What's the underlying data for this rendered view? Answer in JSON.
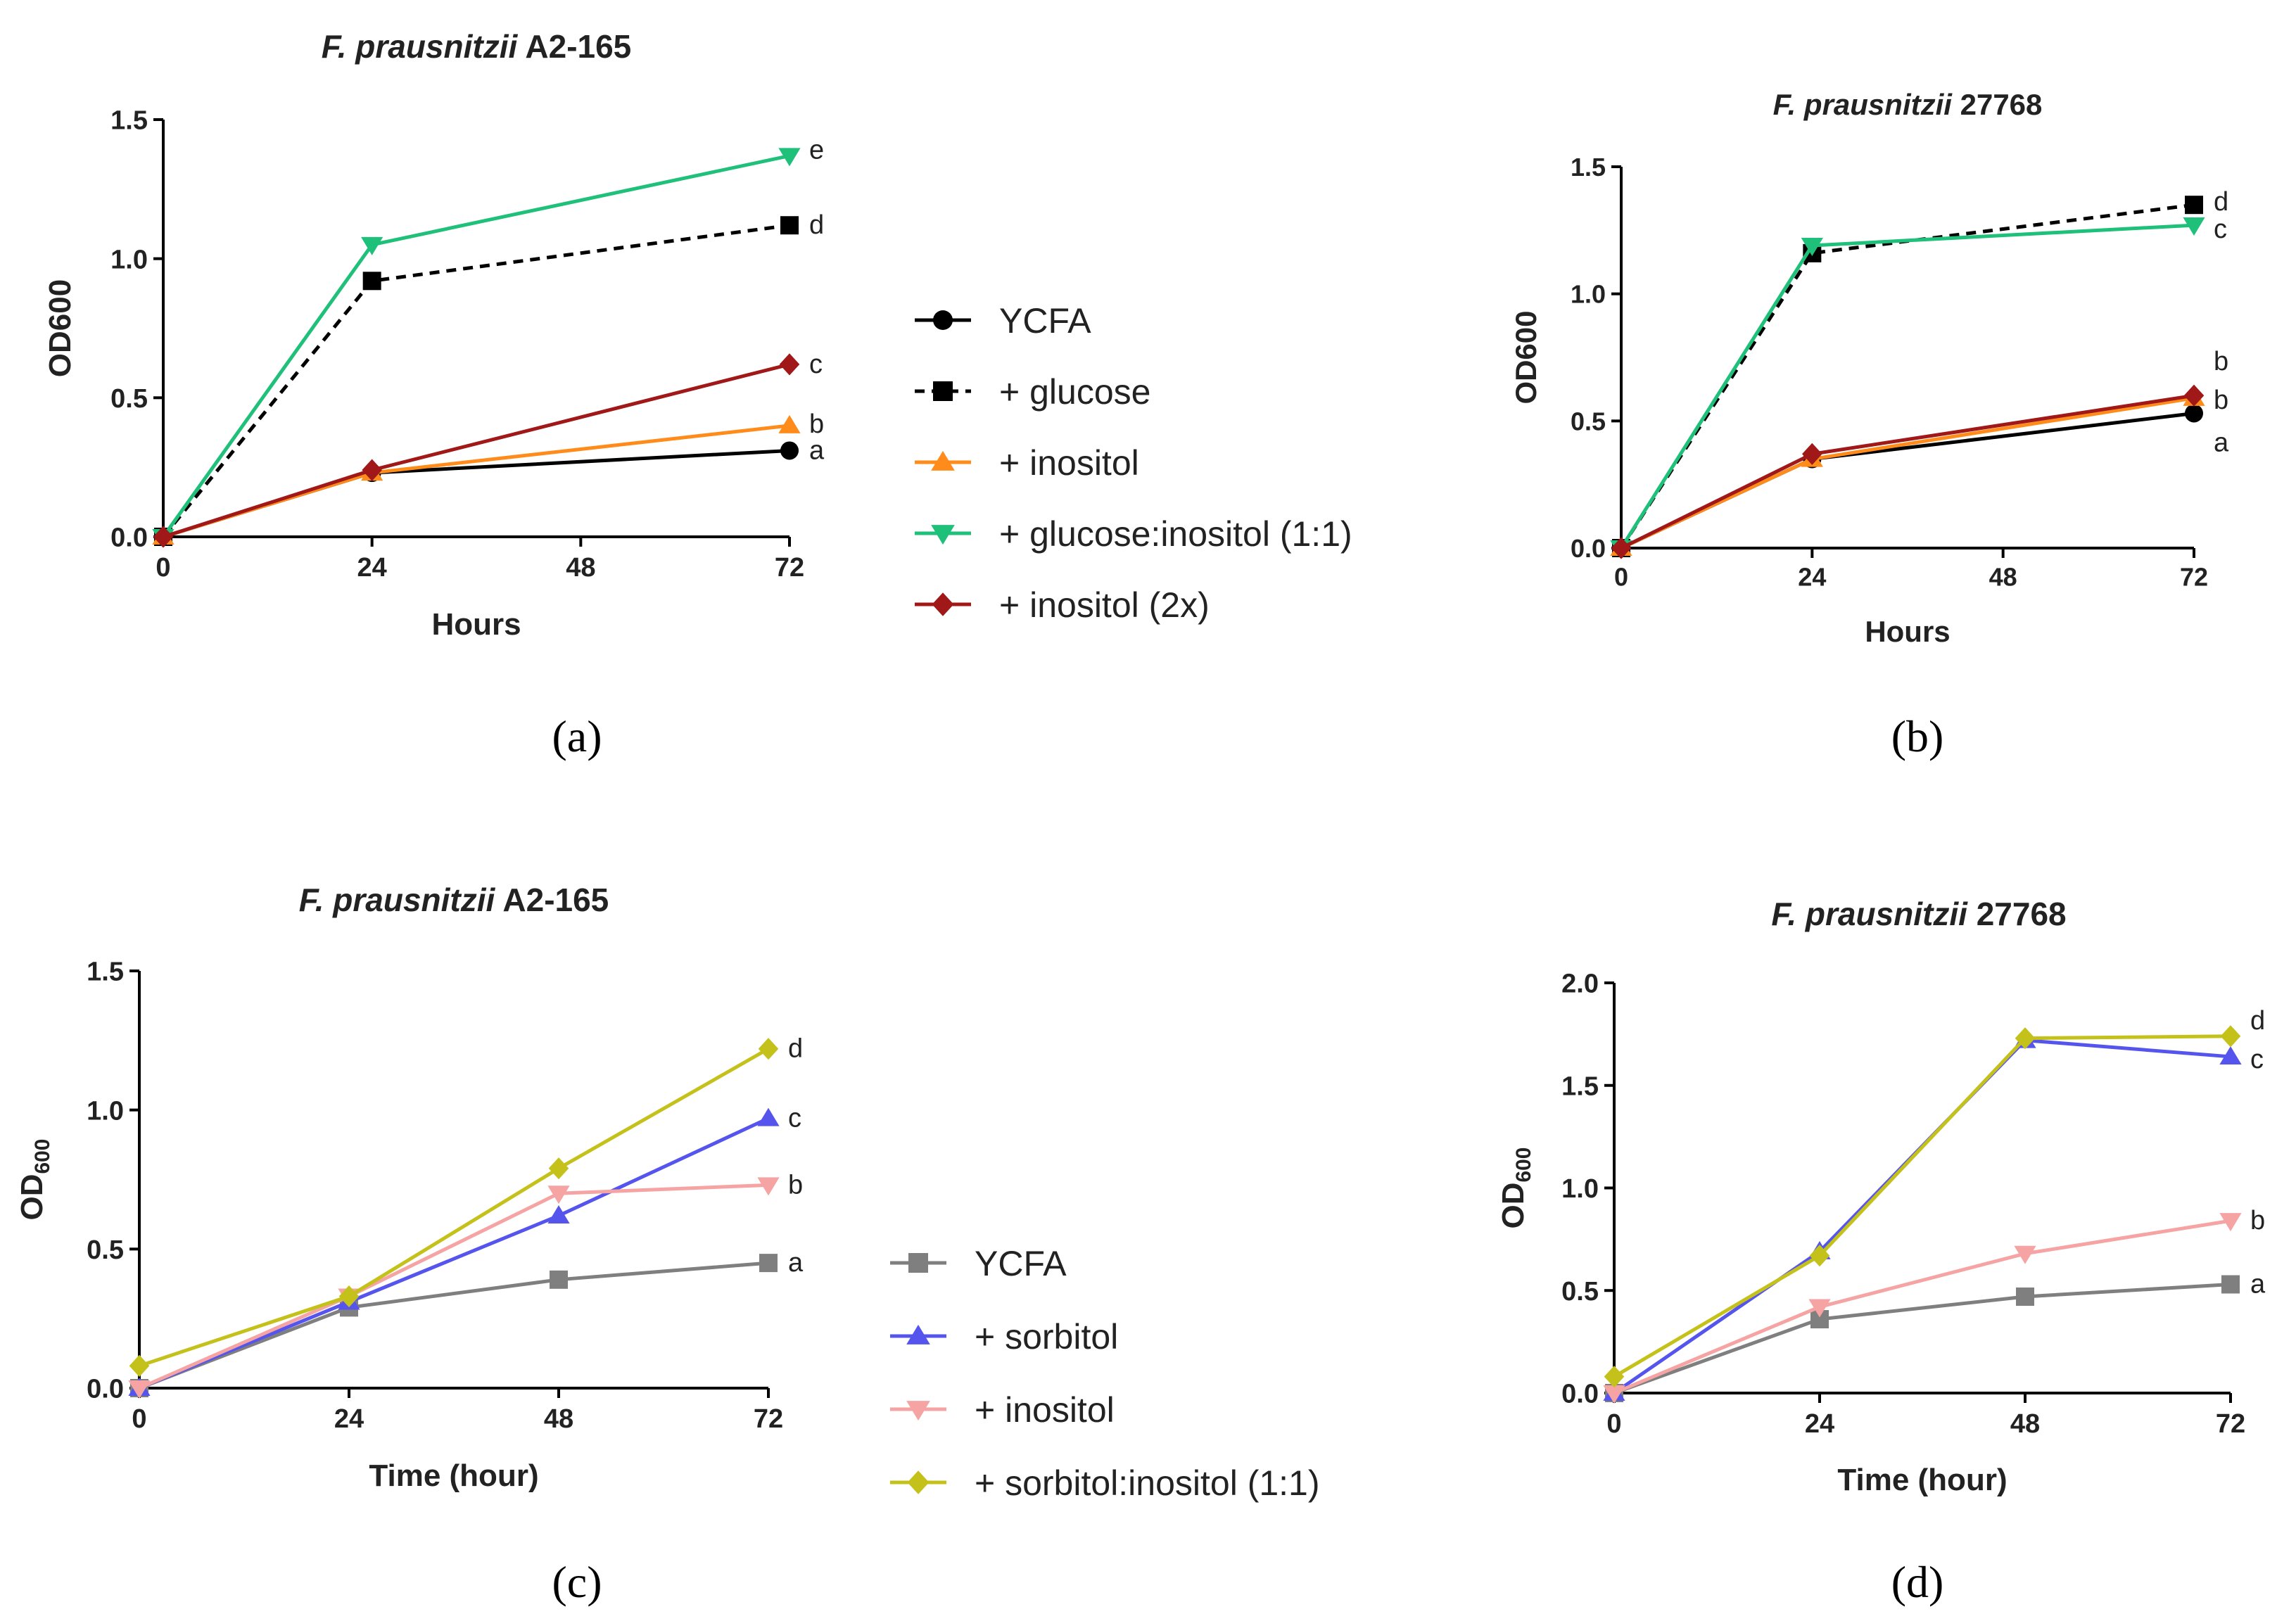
{
  "chart_data": [
    {
      "type": "line",
      "panel_label": "(a)",
      "panel_letter": "a",
      "title_italic": "F. prausnitzii",
      "title_strain": "A2-165",
      "xlabel": "Hours",
      "ylabel": "OD600",
      "ylabel_sub": "",
      "x": [
        0,
        24,
        72
      ],
      "xlim": [
        0,
        72
      ],
      "ylim": [
        0,
        1.5
      ],
      "xticks": [
        "0",
        "24",
        "48",
        "72"
      ],
      "xtick_values": [
        0,
        24,
        48,
        72
      ],
      "yticks": [
        "0.0",
        "0.5",
        "1.0",
        "1.5"
      ],
      "ytick_values": [
        0,
        0.5,
        1.0,
        1.5
      ],
      "legend_placement": "right",
      "series": [
        {
          "name": "YCFA",
          "values": [
            0.0,
            0.23,
            0.31
          ],
          "letter": "a",
          "color": "#000000",
          "marker": "circle",
          "dash": false
        },
        {
          "name": "+ glucose",
          "values": [
            0.0,
            0.92,
            1.12
          ],
          "letter": "d",
          "color": "#000000",
          "marker": "square",
          "dash": true
        },
        {
          "name": "+ inositol",
          "values": [
            0.0,
            0.23,
            0.4
          ],
          "letter": "b",
          "color": "#ff8c1a",
          "marker": "triangle-up",
          "dash": false
        },
        {
          "name": "+ glucose:inositol (1:1)",
          "values": [
            0.0,
            1.05,
            1.37
          ],
          "letter": "e",
          "color": "#1ec07a",
          "marker": "triangle-down",
          "dash": false
        },
        {
          "name": "+ inositol (2x)",
          "values": [
            0.0,
            0.24,
            0.62
          ],
          "letter": "c",
          "color": "#a01818",
          "marker": "diamond",
          "dash": false
        }
      ]
    },
    {
      "type": "line",
      "panel_label": "(b)",
      "panel_letter": "b",
      "title_italic": "F. prausnitzii",
      "title_strain": "27768",
      "xlabel": "Hours",
      "ylabel": "OD600",
      "ylabel_sub": "",
      "x": [
        0,
        24,
        72
      ],
      "xlim": [
        0,
        72
      ],
      "ylim": [
        0,
        1.5
      ],
      "xticks": [
        "0",
        "24",
        "48",
        "72"
      ],
      "xtick_values": [
        0,
        24,
        48,
        72
      ],
      "yticks": [
        "0.0",
        "0.5",
        "1.0",
        "1.5"
      ],
      "ytick_values": [
        0,
        0.5,
        1.0,
        1.5
      ],
      "legend_placement": "none",
      "series": [
        {
          "name": "YCFA",
          "values": [
            0.0,
            0.35,
            0.53
          ],
          "letter": "a",
          "color": "#000000",
          "marker": "circle",
          "dash": false
        },
        {
          "name": "+ glucose",
          "values": [
            0.0,
            1.16,
            1.35
          ],
          "letter": "d",
          "color": "#000000",
          "marker": "square",
          "dash": true
        },
        {
          "name": "+ inositol",
          "values": [
            0.0,
            0.35,
            0.59
          ],
          "letter": "b",
          "color": "#ff8c1a",
          "marker": "triangle-up",
          "dash": false
        },
        {
          "name": "+ glucose:inositol (1:1)",
          "values": [
            0.0,
            1.19,
            1.27
          ],
          "letter": "c",
          "color": "#1ec07a",
          "marker": "triangle-down",
          "dash": false
        },
        {
          "name": "+ inositol (2x)",
          "values": [
            0.0,
            0.37,
            0.6
          ],
          "letter": "b",
          "color": "#a01818",
          "marker": "diamond",
          "dash": false
        }
      ]
    },
    {
      "type": "line",
      "panel_label": "(c)",
      "panel_letter": "c",
      "title_italic": "F. prausnitzii",
      "title_strain": "A2-165",
      "xlabel": "Time (hour)",
      "ylabel": "OD",
      "ylabel_sub": "600",
      "x": [
        0,
        24,
        48,
        72
      ],
      "xlim": [
        0,
        72
      ],
      "ylim": [
        0,
        1.5
      ],
      "xticks": [
        "0",
        "24",
        "48",
        "72"
      ],
      "xtick_values": [
        0,
        24,
        48,
        72
      ],
      "yticks": [
        "0.0",
        "0.5",
        "1.0",
        "1.5"
      ],
      "ytick_values": [
        0,
        0.5,
        1.0,
        1.5
      ],
      "legend_placement": "right",
      "series": [
        {
          "name": "YCFA",
          "values": [
            0.0,
            0.29,
            0.39,
            0.45
          ],
          "letter": "a",
          "color": "#7f7f7f",
          "marker": "square",
          "dash": false
        },
        {
          "name": "+ sorbitol",
          "values": [
            0.0,
            0.31,
            0.62,
            0.97
          ],
          "letter": "c",
          "color": "#5555ee",
          "marker": "triangle-up",
          "dash": false
        },
        {
          "name": "+ inositol",
          "values": [
            0.0,
            0.33,
            0.7,
            0.73
          ],
          "letter": "b",
          "color": "#f6a3a3",
          "marker": "triangle-down",
          "dash": false
        },
        {
          "name": "+ sorbitol:inositol (1:1)",
          "values": [
            0.08,
            0.33,
            0.79,
            1.22
          ],
          "letter": "d",
          "color": "#c4c21a",
          "marker": "diamond",
          "dash": false
        }
      ]
    },
    {
      "type": "line",
      "panel_label": "(d)",
      "panel_letter": "d",
      "title_italic": "F. prausnitzii",
      "title_strain": "27768",
      "xlabel": "Time (hour)",
      "ylabel": "OD",
      "ylabel_sub": "600",
      "x": [
        0,
        24,
        48,
        72
      ],
      "xlim": [
        0,
        72
      ],
      "ylim": [
        0,
        2.0
      ],
      "xticks": [
        "0",
        "24",
        "48",
        "72"
      ],
      "xtick_values": [
        0,
        24,
        48,
        72
      ],
      "yticks": [
        "0.0",
        "0.5",
        "1.0",
        "1.5",
        "2.0"
      ],
      "ytick_values": [
        0,
        0.5,
        1.0,
        1.5,
        2.0
      ],
      "legend_placement": "none",
      "series": [
        {
          "name": "YCFA",
          "values": [
            0.0,
            0.36,
            0.47,
            0.53
          ],
          "letter": "a",
          "color": "#7f7f7f",
          "marker": "square",
          "dash": false
        },
        {
          "name": "+ sorbitol",
          "values": [
            0.0,
            0.69,
            1.72,
            1.64
          ],
          "letter": "c",
          "color": "#5555ee",
          "marker": "triangle-up",
          "dash": false
        },
        {
          "name": "+ inositol",
          "values": [
            0.0,
            0.42,
            0.68,
            0.84
          ],
          "letter": "b",
          "color": "#f6a3a3",
          "marker": "triangle-down",
          "dash": false
        },
        {
          "name": "+ sorbitol:inositol (1:1)",
          "values": [
            0.08,
            0.67,
            1.73,
            1.74
          ],
          "letter": "d",
          "color": "#c4c21a",
          "marker": "diamond",
          "dash": false
        }
      ]
    }
  ]
}
